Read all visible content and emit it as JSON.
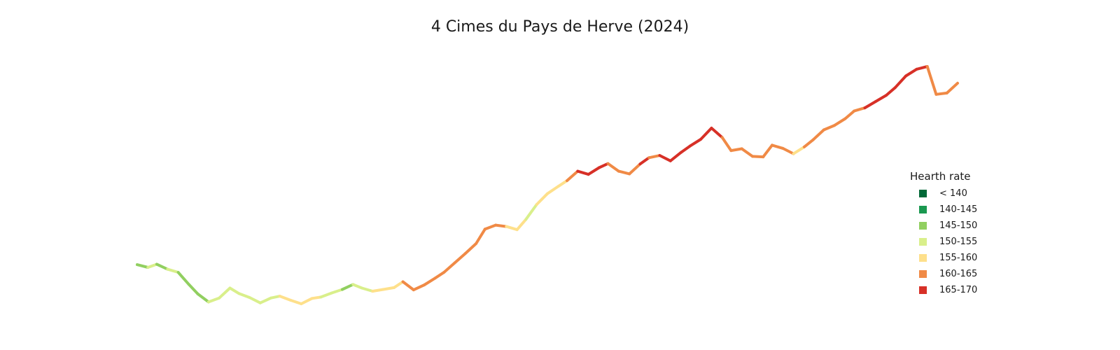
{
  "chart_data": {
    "type": "line",
    "title": "4 Cimes du Pays de Herve (2024)",
    "xlabel": "",
    "ylabel": "",
    "grid": false,
    "axes_visible": false,
    "legend": {
      "title": "Hearth rate",
      "placement": "right",
      "items": [
        {
          "label": "< 140",
          "color": "#006837"
        },
        {
          "label": "140-145",
          "color": "#1a9850"
        },
        {
          "label": "145-150",
          "color": "#91cf60"
        },
        {
          "label": "150-155",
          "color": "#d9ef8b"
        },
        {
          "label": "155-160",
          "color": "#fee08b"
        },
        {
          "label": "160-165",
          "color": "#f08a46"
        },
        {
          "label": "165-170",
          "color": "#d73027"
        }
      ]
    },
    "extra_color": "#a50026",
    "series": [
      {
        "x": [
          0,
          0.6,
          1.1,
          1.7,
          2.3,
          2.9,
          3.4,
          4.0,
          4.6,
          5.2,
          5.7,
          6.3,
          6.9,
          7.5,
          8.0,
          8.6,
          9.2,
          9.8,
          10.3,
          10.9,
          11.5,
          12.1,
          12.6,
          13.2,
          13.8,
          14.4,
          14.9,
          15.5,
          16.1,
          16.7,
          17.2,
          17.8,
          18.4,
          19.0,
          19.5,
          20.1,
          20.7,
          21.3,
          21.8,
          22.4,
          23.0,
          23.6,
          24.1,
          24.7,
          25.3,
          25.9,
          26.4,
          27.0,
          27.6,
          28.2,
          28.7,
          29.3,
          29.9,
          30.5,
          31.0,
          31.6,
          32.2,
          32.8,
          33.3,
          33.9,
          34.5,
          35.1,
          35.6,
          36.2,
          36.8,
          37.4,
          37.9,
          38.5,
          39.1,
          39.7,
          40.2,
          40.8,
          41.4,
          42.0,
          42.5,
          43.1,
          43.7,
          44.3,
          44.8,
          45.4,
          46.0
        ],
        "y": [
          358,
          352,
          359,
          348,
          341,
          314,
          293,
          275,
          284,
          306,
          294,
          285,
          273,
          284,
          288,
          279,
          271,
          283,
          286,
          295,
          303,
          314,
          306,
          299,
          303,
          307,
          320,
          302,
          313,
          328,
          341,
          362,
          383,
          405,
          437,
          446,
          443,
          436,
          459,
          492,
          516,
          532,
          545,
          566,
          559,
          574,
          583,
          566,
          560,
          582,
          596,
          601,
          589,
          608,
          622,
          637,
          662,
          641,
          612,
          616,
          599,
          598,
          624,
          617,
          605,
          620,
          636,
          658,
          668,
          683,
          700,
          707,
          721,
          735,
          752,
          778,
          793,
          799,
          737,
          740,
          762
        ],
        "hr": [
          147,
          152,
          148,
          150,
          152,
          147,
          147,
          152,
          155,
          153,
          148,
          154,
          152,
          154,
          155,
          156,
          154,
          156,
          155,
          152,
          150,
          149,
          151,
          156,
          157,
          158,
          161,
          162,
          160,
          162,
          163,
          162,
          163,
          163,
          164,
          163,
          158,
          160,
          150,
          155,
          157,
          158,
          157,
          165,
          167,
          166,
          164,
          163,
          163,
          166,
          164,
          163,
          169,
          168,
          165,
          167,
          166,
          167,
          162,
          161,
          161,
          163,
          163,
          163,
          160,
          158,
          165,
          162,
          163,
          162,
          164,
          165,
          166,
          166,
          165,
          168,
          167,
          163,
          158,
          163,
          166
        ]
      }
    ]
  }
}
